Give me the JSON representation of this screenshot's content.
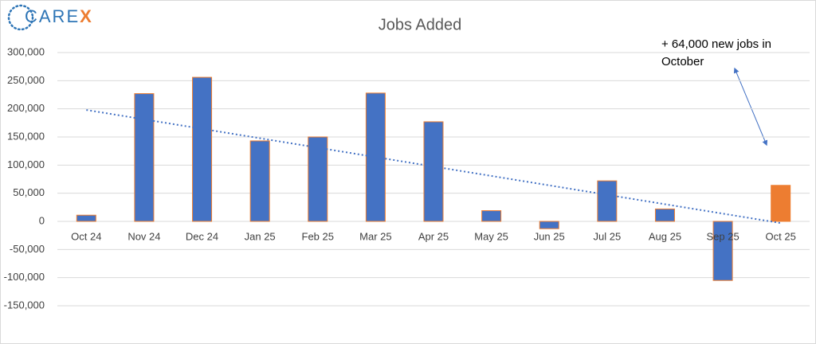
{
  "chart_data": {
    "type": "bar",
    "title": "Jobs Added",
    "logo_main": "CARE",
    "logo_accent": "X",
    "categories": [
      "Oct 24",
      "Nov 24",
      "Dec 24",
      "Jan 25",
      "Feb 25",
      "Mar 25",
      "Apr 25",
      "May 25",
      "Jun 25",
      "Jul 25",
      "Aug 25",
      "Sep 25",
      "Oct 25"
    ],
    "values": [
      11000,
      227000,
      256000,
      143000,
      150000,
      228000,
      177000,
      19000,
      -13000,
      72000,
      22000,
      -105000,
      64000
    ],
    "colors": [
      "#4472c4",
      "#4472c4",
      "#4472c4",
      "#4472c4",
      "#4472c4",
      "#4472c4",
      "#4472c4",
      "#4472c4",
      "#4472c4",
      "#4472c4",
      "#4472c4",
      "#4472c4",
      "#ed7d31"
    ],
    "outline_color": "#ed7d31",
    "trendline": {
      "type": "linear",
      "color": "#4472c4",
      "values": [
        198000,
        -3000
      ]
    },
    "annotation": [
      "+ 64,000 new jobs in",
      "October"
    ],
    "ylim": [
      -150000,
      300000
    ],
    "yticks": [
      {
        "value": -150000,
        "label": "-150,000"
      },
      {
        "value": -100000,
        "label": "-100,000"
      },
      {
        "value": -50000,
        "label": "-50,000"
      },
      0,
      {
        "value": 50000,
        "label": "50,000"
      },
      {
        "value": 100000,
        "label": "100,000"
      },
      {
        "value": 150000,
        "label": "150,000"
      },
      {
        "value": 200000,
        "label": "200,000"
      },
      {
        "value": 250000,
        "label": "250,000"
      },
      {
        "value": 300000,
        "label": "300,000"
      }
    ],
    "grid": true
  }
}
